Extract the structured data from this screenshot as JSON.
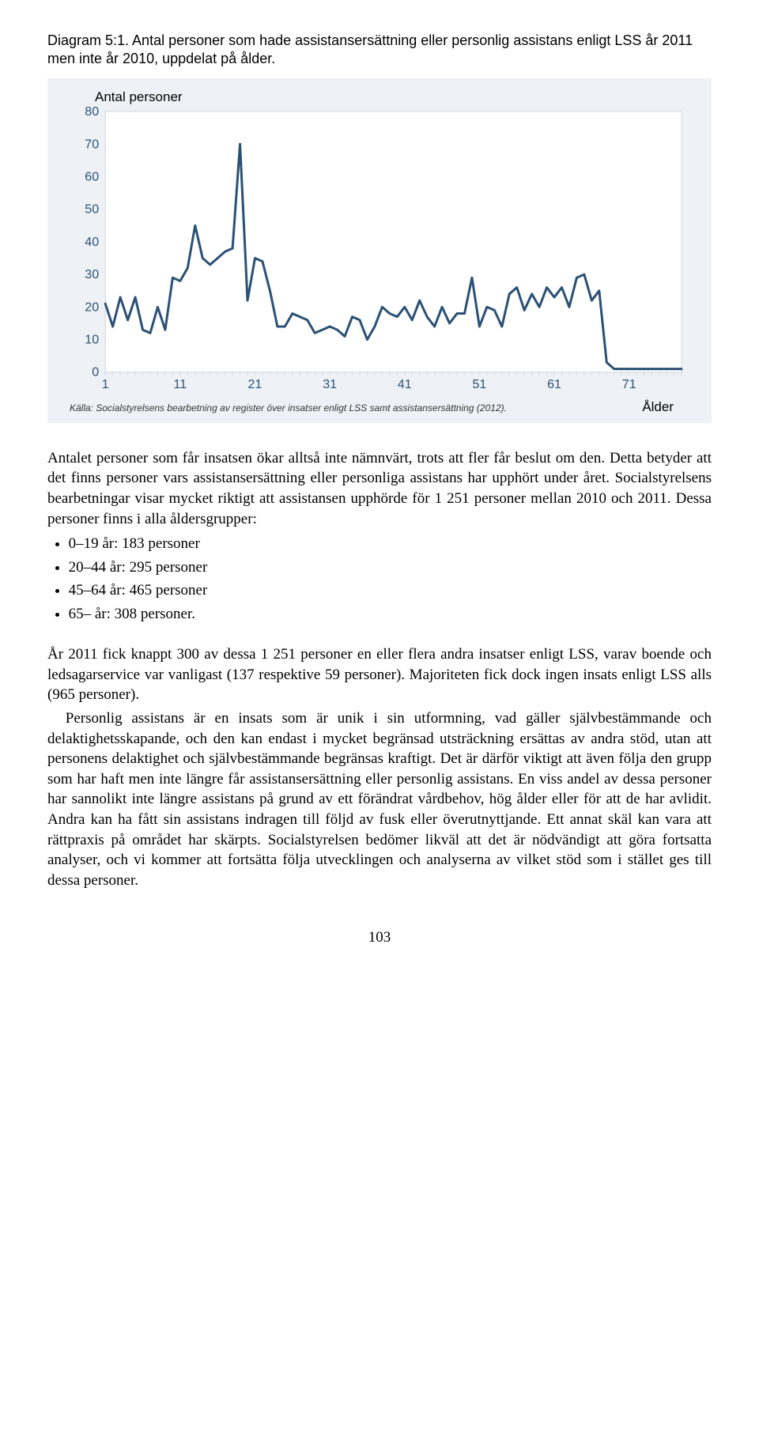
{
  "diagram": {
    "title": "Diagram 5:1. Antal personer som hade assistansersättning eller personlig assistans enligt LSS år 2011 men inte år 2010, uppdelat på ålder.",
    "y_axis_label": "Antal personer",
    "x_axis_label": "Ålder",
    "source": "Källa: Socialstyrelsens bearbetning av register över insatser enligt LSS samt assistansersättning (2012).",
    "chart": {
      "type": "line",
      "line_color": "#2b5176",
      "line_width": 3,
      "background_color": "#eef2f6",
      "plot_background": "#ffffff",
      "plot_border_color": "#cfd6dc",
      "axis_text_color": "#2b5176",
      "gridline_color": "#cfd6dc",
      "ylim": [
        0,
        80
      ],
      "ytick_step": 10,
      "xlim": [
        1,
        78
      ],
      "xticks": [
        1,
        11,
        21,
        31,
        41,
        51,
        61,
        71
      ],
      "yticks": [
        0,
        10,
        20,
        30,
        40,
        50,
        60,
        70,
        80
      ],
      "values": [
        21,
        14,
        23,
        16,
        23,
        13,
        12,
        20,
        13,
        29,
        28,
        32,
        45,
        35,
        33,
        35,
        37,
        38,
        70,
        22,
        35,
        34,
        25,
        14,
        14,
        18,
        17,
        16,
        12,
        13,
        14,
        13,
        11,
        17,
        16,
        10,
        14,
        20,
        18,
        17,
        20,
        16,
        22,
        17,
        14,
        20,
        15,
        18,
        18,
        29,
        14,
        20,
        19,
        14,
        24,
        26,
        19,
        24,
        20,
        26,
        23,
        26,
        20,
        29,
        30,
        22,
        25,
        3,
        1,
        1,
        1,
        1,
        1,
        1,
        1,
        1,
        1,
        1
      ]
    }
  },
  "body": {
    "p1": "Antalet personer som får insatsen ökar alltså inte nämnvärt, trots att fler får beslut om den. Detta betyder att det finns personer vars assistansersättning eller personliga assistans har upphört under året. Socialstyrelsens bearbetningar visar mycket riktigt att assistansen upphörde för 1 251 personer mellan 2010 och 2011. Dessa personer finns i alla åldersgrupper:",
    "bullets": [
      "0–19 år: 183 personer",
      "20–44 år: 295 personer",
      "45–64 år: 465 personer",
      "65– år: 308 personer."
    ],
    "p2": "År 2011 fick knappt 300 av dessa 1 251 personer en eller flera andra insatser enligt LSS, varav boende och ledsagarservice var vanligast (137 respektive 59 personer). Majoriteten fick dock ingen insats enligt LSS alls (965 personer).",
    "p3": "Personlig assistans är en insats som är unik i sin utformning, vad gäller självbestämmande och delaktighetsskapande, och den kan endast i mycket begränsad utsträckning ersättas av andra stöd, utan att personens delaktighet och självbestämmande begränsas kraftigt. Det är därför viktigt att även följa den grupp som har haft men inte längre får assistansersättning eller personlig assistans. En viss andel av dessa personer har sannolikt inte längre assistans på grund av ett förändrat vårdbehov, hög ålder eller för att de har avlidit. Andra kan ha fått sin assistans indragen till följd av fusk eller överutnyttjande. Ett annat skäl kan vara att rättpraxis på området har skärpts. Socialstyrelsen bedömer likväl att det är nödvändigt att göra fortsatta analyser, och vi kommer att fortsätta följa utvecklingen och analyserna av vilket stöd som i stället ges till dessa personer."
  },
  "page_number": "103"
}
